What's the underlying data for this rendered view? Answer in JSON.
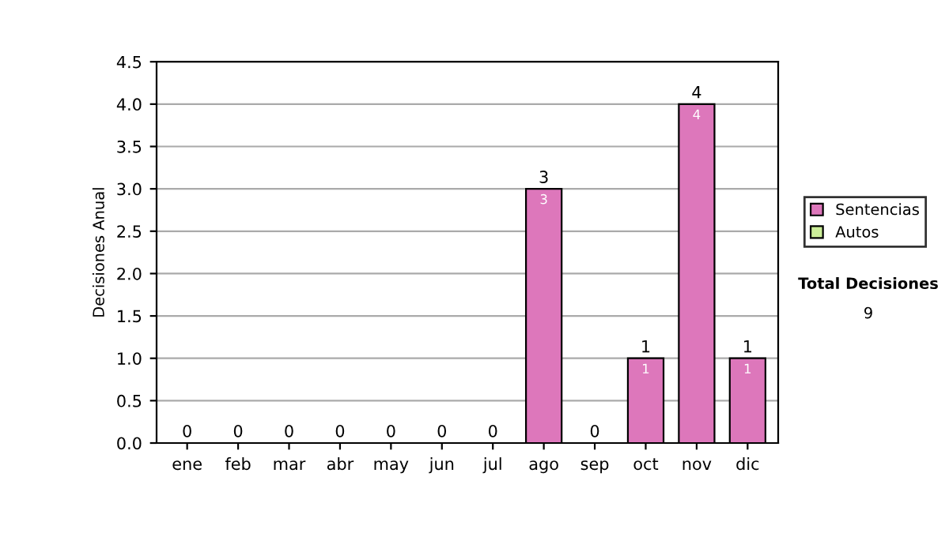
{
  "chart_data": {
    "type": "bar",
    "ylabel": "Decisiones Anual",
    "stacked": true,
    "categories": [
      "ene",
      "feb",
      "mar",
      "abr",
      "may",
      "jun",
      "jul",
      "ago",
      "sep",
      "oct",
      "nov",
      "dic"
    ],
    "series": [
      {
        "name": "Sentencias",
        "color": "#dd77bb",
        "values": [
          0,
          0,
          0,
          0,
          0,
          0,
          0,
          3,
          0,
          1,
          4,
          1
        ],
        "value_labels": [
          null,
          null,
          null,
          null,
          null,
          null,
          null,
          "3",
          null,
          "1",
          "4",
          "1"
        ]
      },
      {
        "name": "Autos",
        "color": "#ccee99",
        "values": [
          0,
          0,
          0,
          0,
          0,
          0,
          0,
          0,
          0,
          0,
          0,
          0
        ]
      }
    ],
    "totals": [
      "0",
      "0",
      "0",
      "0",
      "0",
      "0",
      "0",
      "3",
      "0",
      "1",
      "4",
      "1"
    ],
    "ylim": [
      0,
      4.5
    ],
    "yticks": [
      "0.0",
      "0.5",
      "1.0",
      "1.5",
      "2.0",
      "2.5",
      "3.0",
      "3.5",
      "4.0",
      "4.5"
    ],
    "grid": "y",
    "legend": "right",
    "annotations": [
      "Total Decisiones",
      "9"
    ]
  }
}
